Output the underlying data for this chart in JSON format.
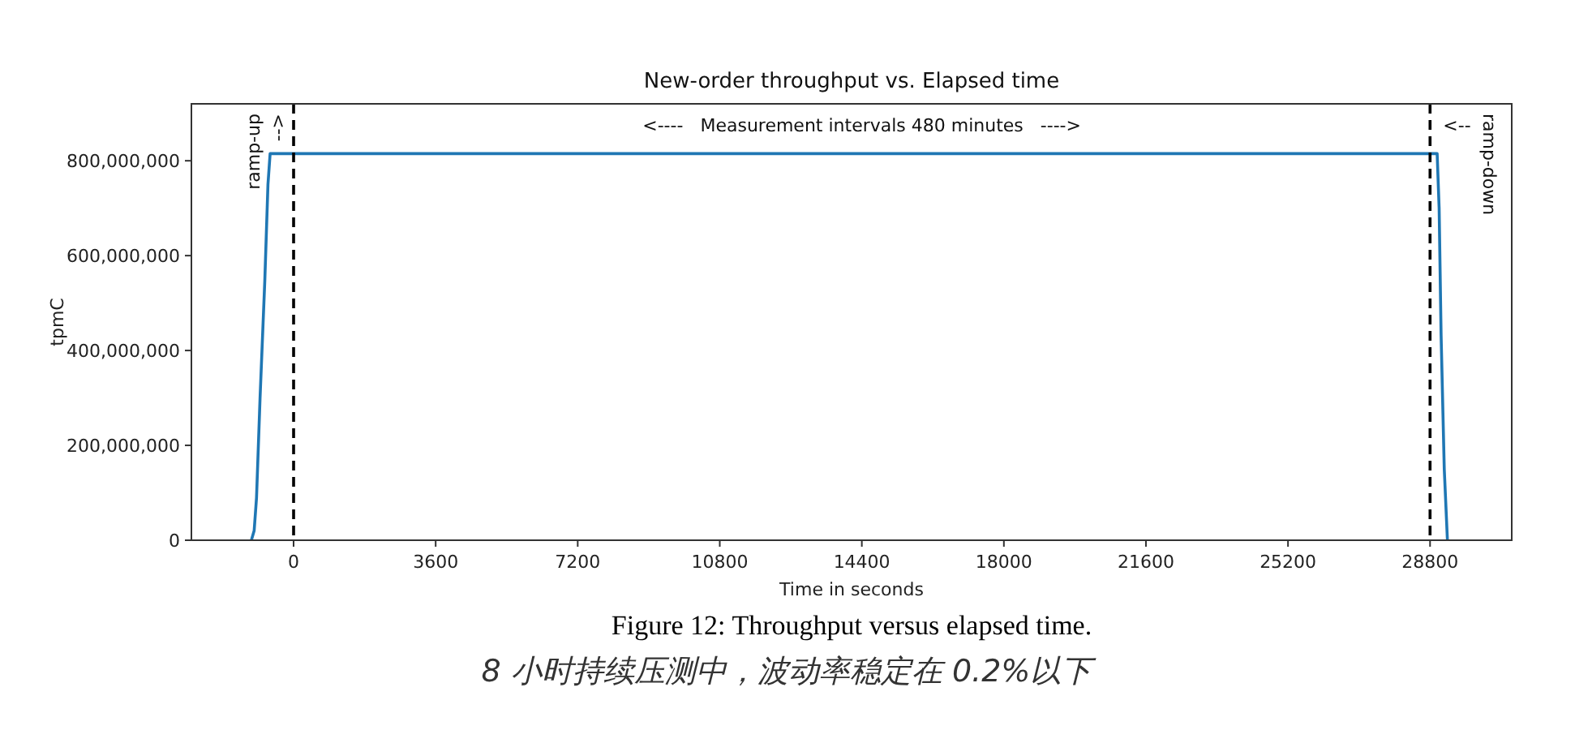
{
  "chart_data": {
    "type": "line",
    "title": "New-order throughput vs. Elapsed time",
    "xlabel": "Time in seconds",
    "ylabel": "tpmC",
    "x": [
      -1070,
      -1000,
      -940,
      -850,
      -730,
      -650,
      -595,
      28980,
      29030,
      29080,
      29160,
      29240
    ],
    "series": [
      {
        "color": "#1f77b4",
        "values": [
          0,
          20000000,
          89000000,
          300000000,
          547000000,
          750000000,
          815000000,
          815000000,
          700000000,
          432000000,
          150000000,
          0
        ]
      }
    ],
    "xlim": [
      -2590,
      30870
    ],
    "ylim": [
      0,
      920000000
    ],
    "xticks": [
      0,
      3600,
      7200,
      10800,
      14400,
      18000,
      21600,
      25200,
      28800
    ],
    "yticks": [
      {
        "value": 0,
        "label": "0"
      },
      {
        "value": 200000000,
        "label": "200,000,000"
      },
      {
        "value": 400000000,
        "label": "400,000,000"
      },
      {
        "value": 600000000,
        "label": "600,000,000"
      },
      {
        "value": 800000000,
        "label": "800,000,000"
      }
    ],
    "ref_lines": [
      {
        "axis": "x",
        "value": 0,
        "color": "#000000",
        "line_style": "dashed"
      },
      {
        "axis": "x",
        "value": 28800,
        "color": "#000000",
        "line_style": "dashed"
      }
    ],
    "annotations": [
      "ramp-up",
      "-->",
      "<----   Measurement intervals 480 minutes   ---->",
      "<--",
      "ramp-down",
      "Figure 12: Throughput versus elapsed time.",
      "8 小时持续压测中，波动率稳定在 0.2%以下"
    ],
    "grid": false,
    "marker": "none",
    "line_style": "solid"
  }
}
